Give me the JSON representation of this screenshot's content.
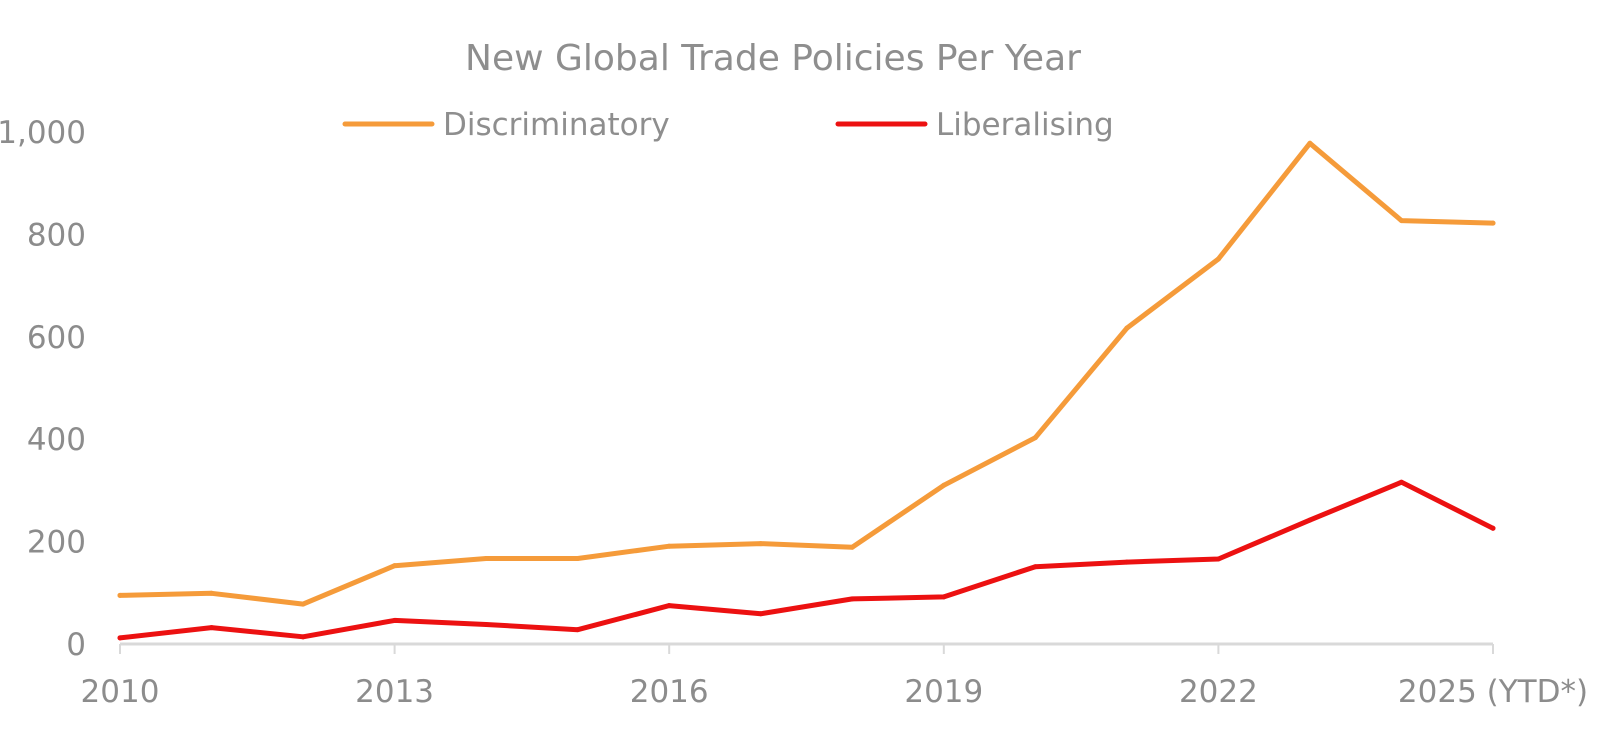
{
  "chart_data": {
    "type": "line",
    "title": "New Global Trade Policies Per Year",
    "xlabel": "",
    "ylabel": "",
    "x": [
      2010,
      2011,
      2012,
      2013,
      2014,
      2015,
      2016,
      2017,
      2018,
      2019,
      2020,
      2021,
      2022,
      2023,
      2024,
      2025
    ],
    "x_tick_values": [
      2010,
      2013,
      2016,
      2019,
      2022,
      2025
    ],
    "x_tick_labels": [
      "2010",
      "2013",
      "2016",
      "2019",
      "2022",
      "2025 (YTD*)"
    ],
    "ylim": [
      0,
      1000
    ],
    "y_tick_values": [
      0,
      200,
      400,
      600,
      800,
      1000
    ],
    "y_tick_labels": [
      "0",
      "200",
      "400",
      "600",
      "800",
      "1,000"
    ],
    "grid": false,
    "legend_position": "top",
    "series": [
      {
        "name": "Discriminatory",
        "color": "#f59b3a",
        "values": [
          95,
          99,
          78,
          153,
          167,
          167,
          191,
          196,
          189,
          310,
          403,
          617,
          752,
          978,
          827,
          822
        ]
      },
      {
        "name": "Liberalising",
        "color": "#ec1111",
        "values": [
          12,
          32,
          14,
          46,
          38,
          28,
          75,
          59,
          88,
          92,
          151,
          160,
          166,
          242,
          316,
          226
        ]
      }
    ],
    "axis_color": "#d9d9d9"
  }
}
